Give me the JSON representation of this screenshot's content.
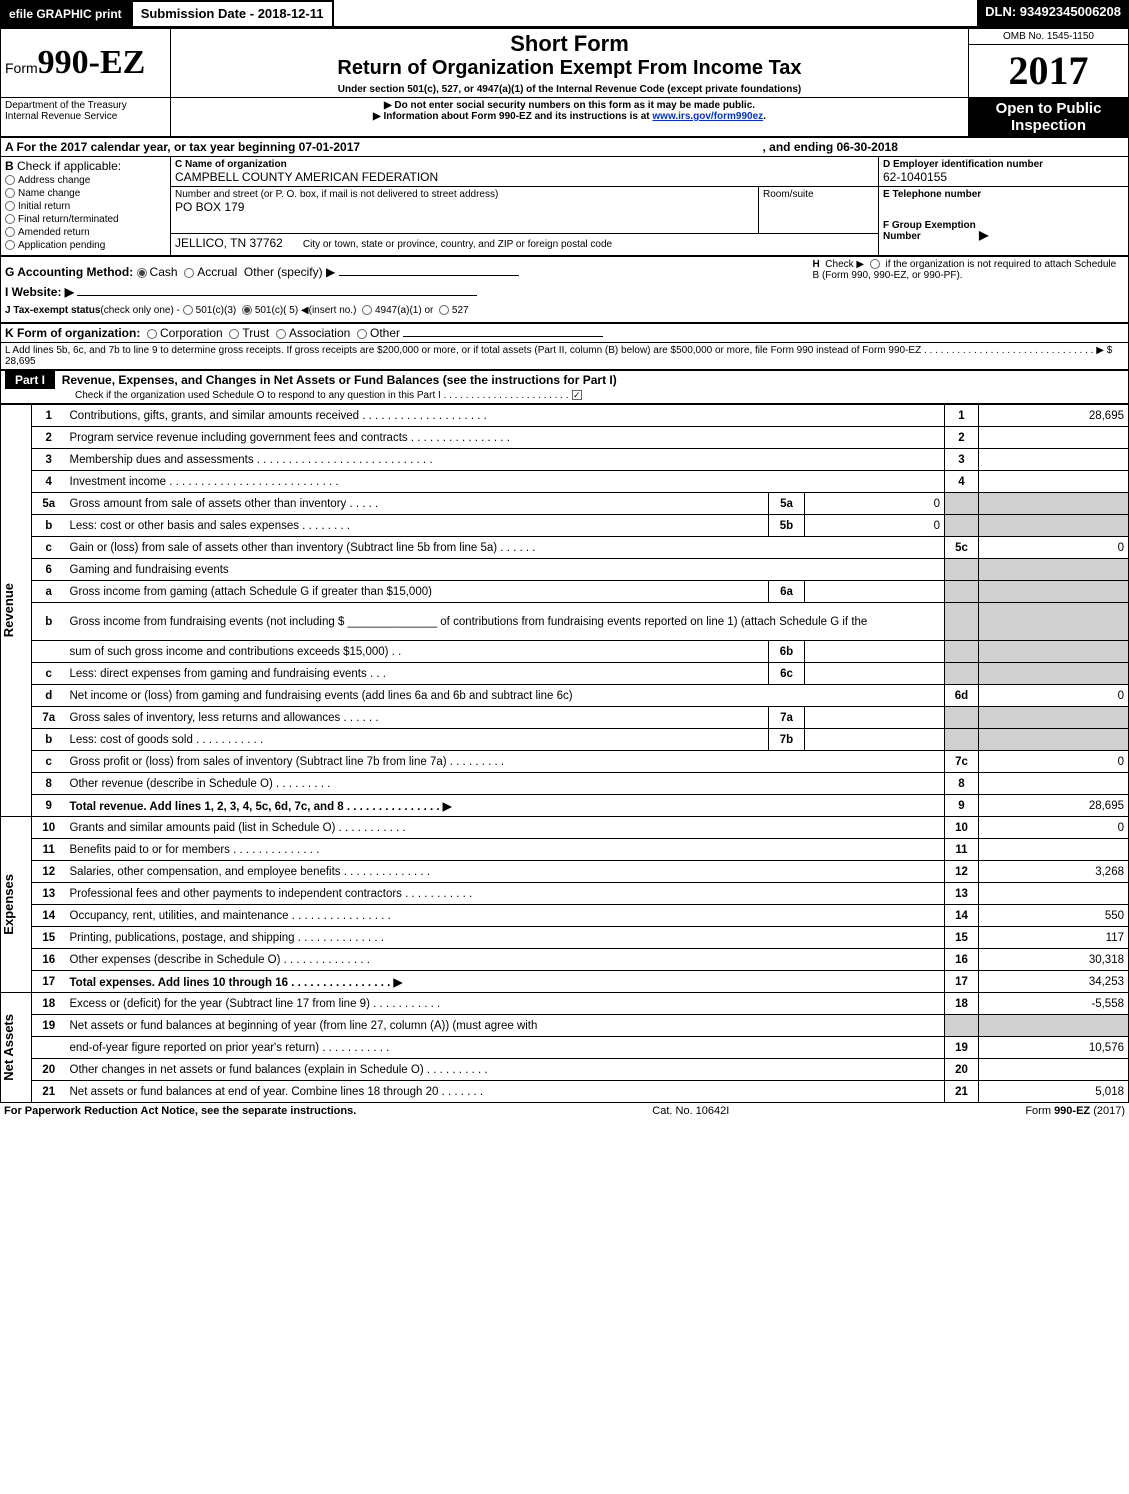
{
  "topbar": {
    "efile_btn": "efile GRAPHIC print",
    "submission_label": "Submission Date - 2018-12-11",
    "dln": "DLN: 93492345006208"
  },
  "header": {
    "form_prefix": "Form",
    "form_number": "990-EZ",
    "short_form": "Short Form",
    "title": "Return of Organization Exempt From Income Tax",
    "subtitle": "Under section 501(c), 527, or 4947(a)(1) of the Internal Revenue Code (except private foundations)",
    "dept": "Department of the Treasury\nInternal Revenue Service",
    "warn1": "▶ Do not enter social security numbers on this form as it may be made public.",
    "warn2_pre": "▶ Information about Form 990-EZ and its instructions is at ",
    "warn2_link": "www.irs.gov/form990ez",
    "warn2_post": ".",
    "omb": "OMB No. 1545-1150",
    "year": "2017",
    "open": "Open to Public\nInspection"
  },
  "sectionA": {
    "line": "A  For the 2017 calendar year, or tax year beginning 07-01-2017",
    "ending": ", and ending 06-30-2018"
  },
  "sectionB": {
    "label": "B",
    "check_if": "Check if applicable:",
    "items": [
      "Address change",
      "Name change",
      "Initial return",
      "Final return/terminated",
      "Amended return",
      "Application pending"
    ]
  },
  "sectionC": {
    "name_label": "C Name of organization",
    "name": "CAMPBELL COUNTY AMERICAN FEDERATION",
    "street_label": "Number and street (or P. O. box, if mail is not delivered to street address)",
    "street": "PO BOX 179",
    "room_label": "Room/suite",
    "city_label": "City or town, state or province, country, and ZIP or foreign postal code",
    "city": "JELLICO, TN  37762"
  },
  "sectionD": {
    "label": "D Employer identification number",
    "value": "62-1040155"
  },
  "sectionE": {
    "label": "E Telephone number",
    "value": ""
  },
  "sectionF": {
    "label": "F Group Exemption\nNumber",
    "arrow": "▶"
  },
  "sectionG": {
    "label": "G Accounting Method:",
    "opts": [
      "Cash",
      "Accrual"
    ],
    "other": "Other (specify) ▶",
    "selected": "Cash"
  },
  "sectionH": {
    "label": "H",
    "text1": "Check ▶",
    "text2": "if the organization is not required to attach Schedule B (Form 990, 990-EZ, or 990-PF)."
  },
  "sectionI": {
    "label": "I Website: ▶"
  },
  "sectionJ": {
    "label": "J Tax-exempt status",
    "note": "(check only one) -",
    "opts": [
      "501(c)(3)",
      "501(c)( 5) ◀(insert no.)",
      "4947(a)(1) or",
      "527"
    ],
    "selected": 1
  },
  "sectionK": {
    "label": "K Form of organization:",
    "opts": [
      "Corporation",
      "Trust",
      "Association",
      "Other"
    ]
  },
  "sectionL": {
    "text": "L Add lines 5b, 6c, and 7b to line 9 to determine gross receipts. If gross receipts are $200,000 or more, or if total assets (Part II, column (B) below) are $500,000 or more, file Form 990 instead of Form 990-EZ  .  .  .  .  .  .  .  .  .  .  .  .  .  .  .  .  .  .  .  .  .  .  .  .  .  .  .  .  .  .  .  ▶",
    "amt": "$ 28,695"
  },
  "partI": {
    "label": "Part I",
    "title": "Revenue, Expenses, and Changes in Net Assets or Fund Balances (see the instructions for Part I)",
    "check_line": "Check if the organization used Schedule O to respond to any question in this Part I .  .  .  .  .  .  .  .  .  .  .  .  .  .  .  .  .  .  .  .  .  .  .",
    "check_sel": true
  },
  "sections_vertical": {
    "revenue": "Revenue",
    "expenses": "Expenses",
    "netassets": "Net Assets"
  },
  "lines": [
    {
      "n": "1",
      "desc": "Contributions, gifts, grants, and similar amounts received  .  .  .  .  .  .  .  .  .  .  .  .  .  .  .  .  .  .  .  .",
      "box": "1",
      "amt": "28,695"
    },
    {
      "n": "2",
      "desc": "Program service revenue including government fees and contracts  .  .  .  .  .  .  .  .  .  .  .  .  .  .  .  .",
      "box": "2",
      "amt": ""
    },
    {
      "n": "3",
      "desc": "Membership dues and assessments  .  .  .  .  .  .  .  .  .  .  .  .  .  .  .  .  .  .  .  .  .  .  .  .  .  .  .  .",
      "box": "3",
      "amt": ""
    },
    {
      "n": "4",
      "desc": "Investment income  .  .  .  .  .  .  .  .  .  .  .  .  .  .  .  .  .  .  .  .  .  .  .  .  .  .  .",
      "box": "4",
      "amt": ""
    },
    {
      "n": "5a",
      "desc": "Gross amount from sale of assets other than inventory  .  .  .  .  .",
      "mid": "5a",
      "midamt": "0",
      "grey": true
    },
    {
      "n": "b",
      "desc": "Less: cost or other basis and sales expenses  .  .  .  .  .  .  .  .",
      "mid": "5b",
      "midamt": "0",
      "grey": true
    },
    {
      "n": "c",
      "desc": "Gain or (loss) from sale of assets other than inventory (Subtract line 5b from line 5a)             .     .     .     .     .     .",
      "box": "5c",
      "amt": "0"
    },
    {
      "n": "6",
      "desc": "Gaming and fundraising events",
      "grey": true
    },
    {
      "n": "a",
      "desc": "Gross income from gaming (attach Schedule G if greater than $15,000)",
      "mid": "6a",
      "midamt": "",
      "grey": true
    },
    {
      "n": "b",
      "desc": "Gross income from fundraising events (not including $ ______________ of contributions from fundraising events reported on line 1) (attach Schedule G if the",
      "grey": true,
      "tall": true
    },
    {
      "n": "",
      "desc": "sum of such gross income and contributions exceeds $15,000)        .     .",
      "mid": "6b",
      "midamt": "",
      "grey": true
    },
    {
      "n": "c",
      "desc": "Less: direct expenses from gaming and fundraising events        .     .     .",
      "mid": "6c",
      "midamt": "",
      "grey": true
    },
    {
      "n": "d",
      "desc": "Net income or (loss) from gaming and fundraising events (add lines 6a and 6b and subtract line 6c)",
      "box": "6d",
      "amt": "0"
    },
    {
      "n": "7a",
      "desc": "Gross sales of inventory, less returns and allowances             .     .     .     .     .     .",
      "mid": "7a",
      "midamt": "",
      "grey": true
    },
    {
      "n": "b",
      "desc": "Less: cost of goods sold                    .     .     .     .     .     .     .     .     .     .     .",
      "mid": "7b",
      "midamt": "",
      "grey": true
    },
    {
      "n": "c",
      "desc": "Gross profit or (loss) from sales of inventory (Subtract line 7b from line 7a)            .     .     .     .     .     .     .     .     .",
      "box": "7c",
      "amt": "0"
    },
    {
      "n": "8",
      "desc": "Other revenue (describe in Schedule O)                                                    .     .     .     .     .     .     .     .     .",
      "box": "8",
      "amt": ""
    },
    {
      "n": "9",
      "desc": "Total revenue. Add lines 1, 2, 3, 4, 5c, 6d, 7c, and 8         .     .     .     .     .     .     .     .     .     .     .     .     .     .     .    ▶",
      "box": "9",
      "amt": "28,695",
      "bold": true
    },
    {
      "n": "10",
      "desc": "Grants and similar amounts paid (list in Schedule O)                        .     .     .     .     .     .     .     .     .     .     .",
      "box": "10",
      "amt": "0",
      "sec": "exp"
    },
    {
      "n": "11",
      "desc": "Benefits paid to or for members                                    .     .     .     .     .     .     .     .     .     .     .     .     .     .",
      "box": "11",
      "amt": "",
      "sec": "exp"
    },
    {
      "n": "12",
      "desc": "Salaries, other compensation, and employee benefits           .     .     .     .     .     .     .     .     .     .     .     .     .     .",
      "box": "12",
      "amt": "3,268",
      "sec": "exp"
    },
    {
      "n": "13",
      "desc": "Professional fees and other payments to independent contractors        .     .     .     .     .     .     .     .     .     .     .",
      "box": "13",
      "amt": "",
      "sec": "exp"
    },
    {
      "n": "14",
      "desc": "Occupancy, rent, utilities, and maintenance           .     .     .     .     .     .     .     .     .     .     .     .     .     .     .     .",
      "box": "14",
      "amt": "550",
      "sec": "exp"
    },
    {
      "n": "15",
      "desc": "Printing, publications, postage, and shipping                     .     .     .     .     .     .     .     .     .     .     .     .     .     .",
      "box": "15",
      "amt": "117",
      "sec": "exp"
    },
    {
      "n": "16",
      "desc": "Other expenses (describe in Schedule O)                           .     .     .     .     .     .     .     .     .     .     .     .     .     .",
      "box": "16",
      "amt": "30,318",
      "sec": "exp"
    },
    {
      "n": "17",
      "desc": "Total expenses. Add lines 10 through 16                  .     .     .     .     .     .     .     .     .     .     .     .     .     .     .     .    ▶",
      "box": "17",
      "amt": "34,253",
      "sec": "exp",
      "bold": true
    },
    {
      "n": "18",
      "desc": "Excess or (deficit) for the year (Subtract line 17 from line 9)                  .     .     .     .     .     .     .     .     .     .     .",
      "box": "18",
      "amt": "-5,558",
      "sec": "net"
    },
    {
      "n": "19",
      "desc": "Net assets or fund balances at beginning of year (from line 27, column (A)) (must agree with",
      "grey": true,
      "sec": "net"
    },
    {
      "n": "",
      "desc": "end-of-year figure reported on prior year's return)                             .     .     .     .     .     .     .     .     .     .     .",
      "box": "19",
      "amt": "10,576",
      "sec": "net"
    },
    {
      "n": "20",
      "desc": "Other changes in net assets or fund balances (explain in Schedule O)          .     .     .     .     .     .     .     .     .     .",
      "box": "20",
      "amt": "",
      "sec": "net"
    },
    {
      "n": "21",
      "desc": "Net assets or fund balances at end of year. Combine lines 18 through 20                  .     .     .     .     .     .     .",
      "box": "21",
      "amt": "5,018",
      "sec": "net"
    }
  ],
  "footer": {
    "left": "For Paperwork Reduction Act Notice, see the separate instructions.",
    "mid": "Cat. No. 10642I",
    "right_pre": "Form ",
    "right_form": "990-EZ",
    "right_post": " (2017)"
  },
  "colors": {
    "black": "#000000",
    "grey": "#d0d0d0",
    "link": "#0033cc"
  }
}
